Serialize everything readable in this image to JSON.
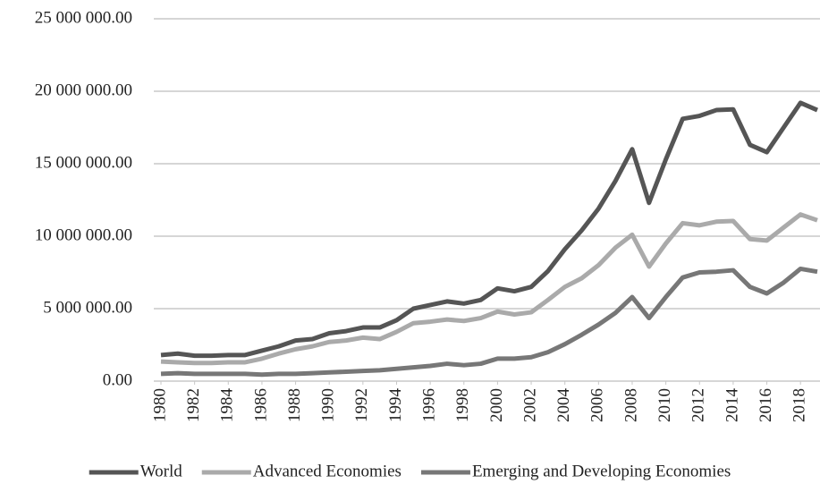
{
  "chart_data": {
    "type": "line",
    "x": [
      1980,
      1981,
      1982,
      1983,
      1984,
      1985,
      1986,
      1987,
      1988,
      1989,
      1990,
      1991,
      1992,
      1993,
      1994,
      1995,
      1996,
      1997,
      1998,
      1999,
      2000,
      2001,
      2002,
      2003,
      2004,
      2005,
      2006,
      2007,
      2008,
      2009,
      2010,
      2011,
      2012,
      2013,
      2014,
      2015,
      2016,
      2017,
      2018,
      2019
    ],
    "xlim": [
      1980,
      2019
    ],
    "xticks": [
      1980,
      1982,
      1984,
      1986,
      1988,
      1990,
      1992,
      1994,
      1996,
      1998,
      2000,
      2002,
      2004,
      2006,
      2008,
      2010,
      2012,
      2014,
      2016,
      2018
    ],
    "ylim": [
      0,
      25000000
    ],
    "yticks": [
      {
        "value": 0,
        "label": "0.00"
      },
      {
        "value": 5000000,
        "label": "5 000 000.00"
      },
      {
        "value": 10000000,
        "label": "10 000 000.00"
      },
      {
        "value": 15000000,
        "label": "15 000 000.00"
      },
      {
        "value": 20000000,
        "label": "20 000 000.00"
      },
      {
        "value": 25000000,
        "label": "25 000 000.00"
      }
    ],
    "grid": true,
    "legend": "bottom",
    "series": [
      {
        "name": "World",
        "color": "#555555",
        "values": [
          1800000,
          1900000,
          1750000,
          1750000,
          1800000,
          1800000,
          2100000,
          2400000,
          2800000,
          2900000,
          3300000,
          3450000,
          3700000,
          3700000,
          4200000,
          5000000,
          5250000,
          5500000,
          5350000,
          5600000,
          6400000,
          6200000,
          6500000,
          7600000,
          9100000,
          10400000,
          11900000,
          13800000,
          16000000,
          12300000,
          15300000,
          18100000,
          18300000,
          18700000,
          18750000,
          16300000,
          15800000,
          17500000,
          19200000,
          18700000
        ]
      },
      {
        "name": "Advanced Economies",
        "color": "#aaaaaa",
        "values": [
          1350000,
          1300000,
          1250000,
          1250000,
          1300000,
          1300000,
          1550000,
          1900000,
          2200000,
          2400000,
          2700000,
          2800000,
          3000000,
          2900000,
          3400000,
          4000000,
          4100000,
          4250000,
          4150000,
          4350000,
          4800000,
          4600000,
          4750000,
          5600000,
          6500000,
          7100000,
          8000000,
          9200000,
          10100000,
          7900000,
          9500000,
          10900000,
          10750000,
          11000000,
          11050000,
          9800000,
          9700000,
          10600000,
          11500000,
          11100000
        ]
      },
      {
        "name": "Emerging and Developing Economies",
        "color": "#777777",
        "values": [
          500000,
          550000,
          500000,
          500000,
          500000,
          500000,
          450000,
          500000,
          500000,
          550000,
          600000,
          650000,
          700000,
          750000,
          850000,
          950000,
          1050000,
          1200000,
          1100000,
          1200000,
          1550000,
          1550000,
          1650000,
          2000000,
          2550000,
          3200000,
          3900000,
          4700000,
          5800000,
          4350000,
          5800000,
          7150000,
          7500000,
          7550000,
          7650000,
          6500000,
          6050000,
          6800000,
          7750000,
          7550000
        ]
      }
    ]
  }
}
